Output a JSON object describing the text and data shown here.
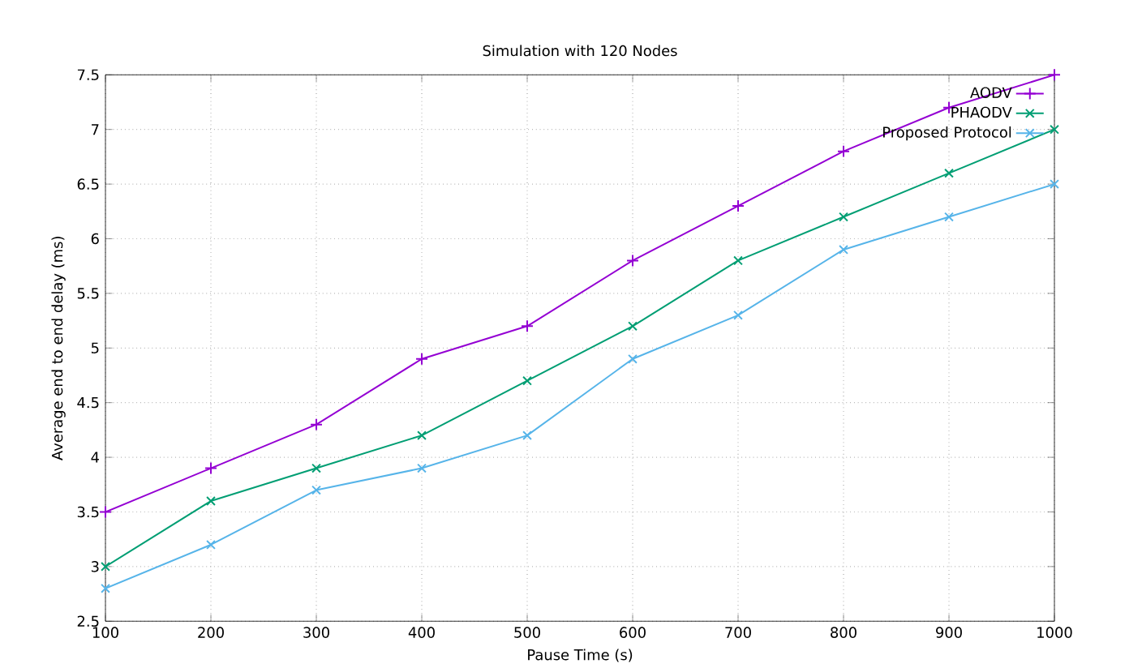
{
  "chart_data": {
    "type": "line",
    "title": "Simulation with 120 Nodes",
    "xlabel": "Pause Time (s)",
    "ylabel": "Average end to end delay (ms)",
    "x": [
      100,
      200,
      300,
      400,
      500,
      600,
      700,
      800,
      900,
      1000
    ],
    "series": [
      {
        "name": "AODV",
        "color": "#9400d3",
        "marker": "plus",
        "values": [
          3.5,
          3.9,
          4.3,
          4.9,
          5.2,
          5.8,
          6.3,
          6.8,
          7.2,
          7.5
        ]
      },
      {
        "name": "PHAODV",
        "color": "#009e73",
        "marker": "cross",
        "values": [
          3.0,
          3.6,
          3.9,
          4.2,
          4.7,
          5.2,
          5.8,
          6.2,
          6.6,
          7.0
        ]
      },
      {
        "name": "Proposed Protocol",
        "color": "#56b4e9",
        "marker": "cross",
        "values": [
          2.8,
          3.2,
          3.7,
          3.9,
          4.2,
          4.9,
          5.3,
          5.9,
          6.2,
          6.5
        ]
      }
    ],
    "xlim": [
      100,
      1000
    ],
    "xticks": [
      100,
      200,
      300,
      400,
      500,
      600,
      700,
      800,
      900,
      1000
    ],
    "ylim": [
      2.5,
      7.5
    ],
    "yticks": [
      2.5,
      3,
      3.5,
      4,
      4.5,
      5,
      5.5,
      6,
      6.5,
      7,
      7.5
    ],
    "grid": true,
    "legend": "top right",
    "line_style": "solid"
  }
}
